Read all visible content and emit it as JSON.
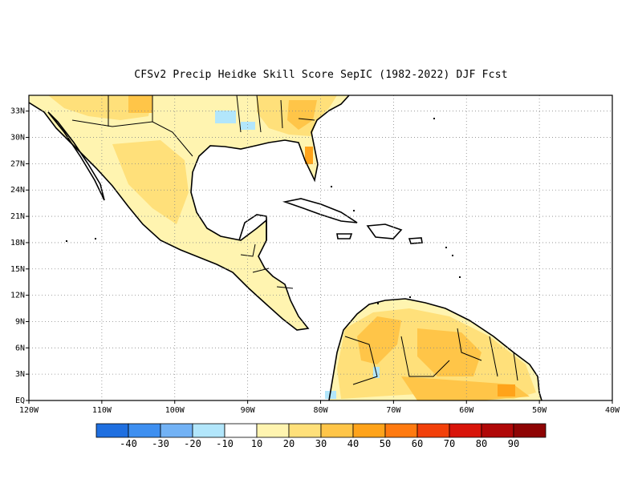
{
  "title": "CFSv2 Precip Heidke Skill Score SepIC (1982-2022) DJF Fcst",
  "map": {
    "lon_range": [
      -120,
      -40
    ],
    "lat_range": [
      0,
      35
    ],
    "lon_ticks": [
      "120W",
      "110W",
      "100W",
      "90W",
      "80W",
      "70W",
      "60W",
      "50W",
      "40W"
    ],
    "lat_ticks": [
      "EQ",
      "3N",
      "6N",
      "9N",
      "12N",
      "15N",
      "18N",
      "21N",
      "24N",
      "27N",
      "30N",
      "33N"
    ],
    "grid": "dotted"
  },
  "colorbar": {
    "labels": [
      "-40",
      "-30",
      "-20",
      "-10",
      "10",
      "20",
      "30",
      "40",
      "50",
      "60",
      "70",
      "80",
      "90"
    ],
    "colors": [
      "#1f6fe0",
      "#3e8ff0",
      "#72b2f5",
      "#b2e6fb",
      "#ffffff",
      "#fff4b0",
      "#ffe07a",
      "#ffc548",
      "#ffa31a",
      "#ff7a10",
      "#f2400a",
      "#d8140a",
      "#b00808",
      "#8e0404"
    ]
  },
  "colors": {
    "land_light": "#fff4b0",
    "land_mid": "#ffe07a",
    "land_orange": "#ffc548",
    "land_dark": "#ffa31a",
    "negative": "#b2e6fb"
  }
}
